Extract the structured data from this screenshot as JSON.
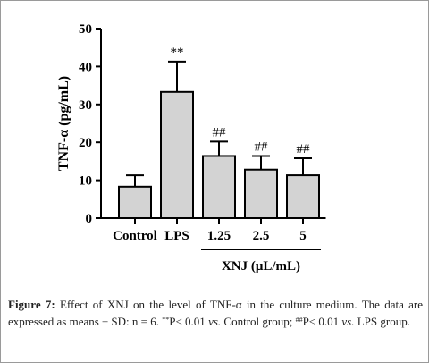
{
  "chart_data": {
    "type": "bar",
    "categories": [
      "Control",
      "LPS",
      "1.25",
      "2.5",
      "5"
    ],
    "values": [
      8.3,
      33.3,
      16.4,
      12.8,
      11.3
    ],
    "errors": [
      3.0,
      8.0,
      3.8,
      3.6,
      4.5
    ],
    "significance": [
      "",
      "**",
      "##",
      "##",
      "##"
    ],
    "ylabel": "TNF-α (pg/mL)",
    "group_label": "XNJ (μL/mL)",
    "group_categories": [
      "1.25",
      "2.5",
      "5"
    ],
    "ylim": [
      0,
      50
    ],
    "yticks": [
      0,
      10,
      20,
      30,
      40,
      50
    ],
    "bar_color": "#d3d3d3",
    "edge_color": "#000000",
    "grid": false
  },
  "caption": {
    "lead": "Figure 7:",
    "text1": " Effect of XNJ on the level of TNF-α in the culture medium. The data are expressed as means ± SD: n = 6. ",
    "sup1": "**",
    "text2": "P< 0.01 ",
    "vs1": "vs.",
    "text3": " Control group; ",
    "sup2": "##",
    "text4": "P< 0.01 ",
    "vs2": "vs.",
    "text5": " LPS group."
  }
}
